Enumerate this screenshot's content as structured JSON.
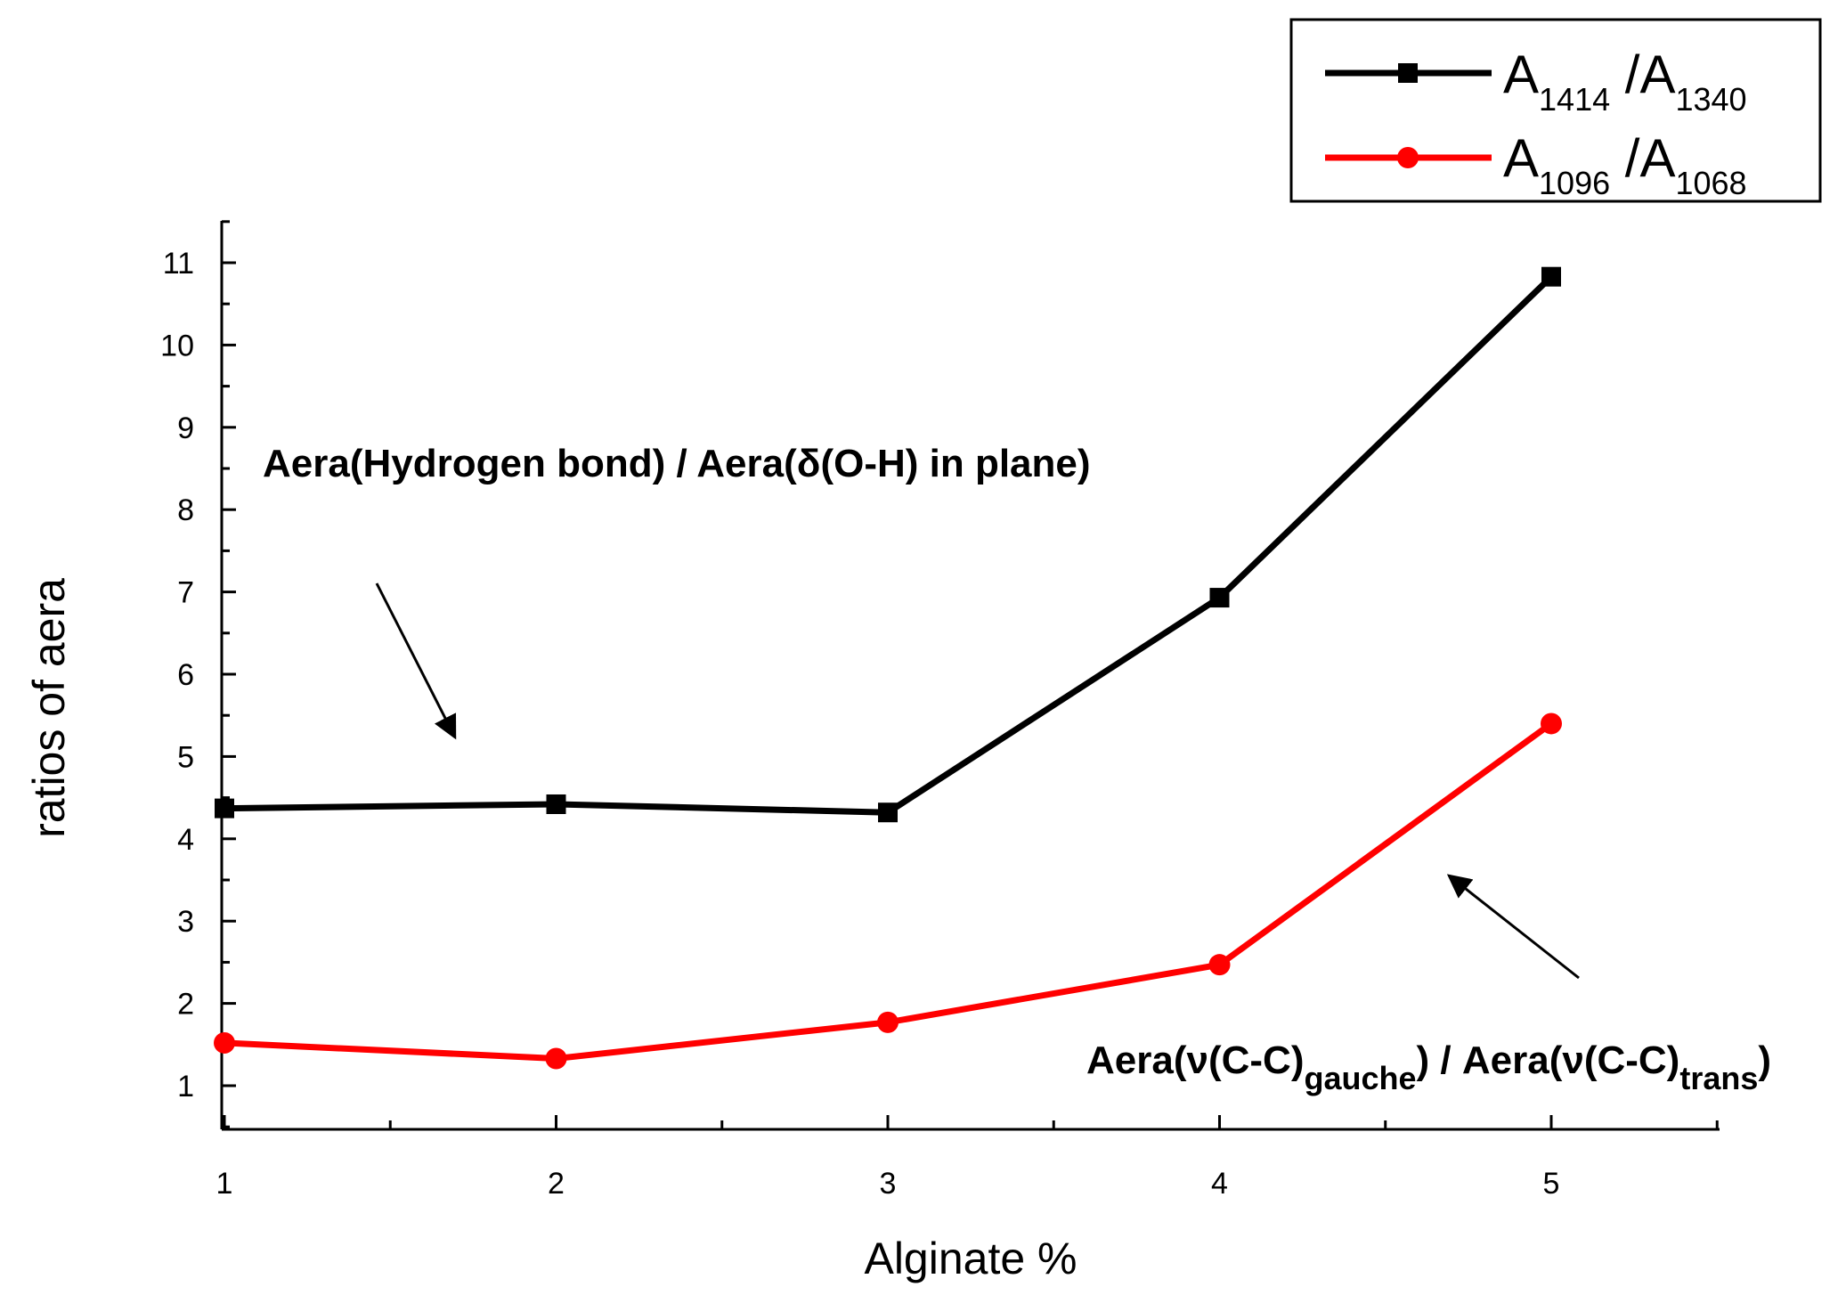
{
  "chart_data": {
    "type": "line",
    "xlabel": "Alginate %",
    "ylabel": "ratios of aera",
    "xlim": [
      1,
      5.5
    ],
    "ylim": [
      0.5,
      11.5
    ],
    "x_ticks": [
      1,
      2,
      3,
      4,
      5
    ],
    "y_ticks": [
      1,
      2,
      3,
      4,
      5,
      6,
      7,
      8,
      9,
      10,
      11
    ],
    "grid": false,
    "legend_position": "top-right",
    "x": [
      1,
      2,
      3,
      4,
      5
    ],
    "series": [
      {
        "name": "A1414 /A1340",
        "name_base": "A",
        "name_sub1": "1414",
        "name_mid": " /A",
        "name_sub2": "1340",
        "color": "#000000",
        "marker": "square",
        "values": [
          4.37,
          4.42,
          4.32,
          6.93,
          10.83
        ]
      },
      {
        "name": "A1096 /A1068",
        "name_base": "A",
        "name_sub1": "1096",
        "name_mid": " /A",
        "name_sub2": "1068",
        "color": "#ff0000",
        "marker": "circle",
        "values": [
          1.52,
          1.33,
          1.77,
          2.47,
          5.4
        ]
      }
    ],
    "annotations": [
      {
        "text": "Aera(Hydrogen bond) / Aera(δ(O-H) in plane)"
      },
      {
        "text": "Aera(ν(C-C)gauche) / Aera(ν(C-C)trans)",
        "part1": "Aera(ν(C-C)",
        "sub1": "gauche",
        "part2": ") / Aera(ν(C-C)",
        "sub2": "trans",
        "part3": ")"
      }
    ]
  }
}
